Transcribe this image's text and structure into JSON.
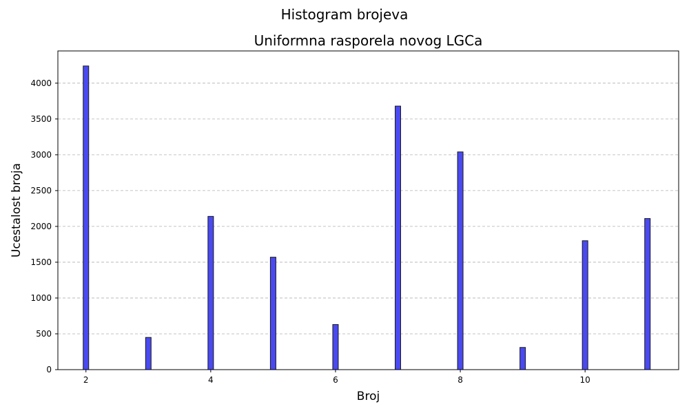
{
  "chart_data": {
    "type": "bar",
    "suptitle": "Histogram brojeva",
    "title": "Uniformna rasporela novog LGCa",
    "xlabel": "Broj",
    "ylabel": "Ucestalost broja",
    "x": [
      2,
      3,
      4,
      5,
      6,
      7,
      8,
      9,
      10,
      11
    ],
    "values": [
      4240,
      450,
      2140,
      1570,
      630,
      3680,
      3040,
      310,
      1800,
      2110
    ],
    "xlim": [
      1.55,
      11.5
    ],
    "ylim": [
      0,
      4450
    ],
    "xticks": [
      2,
      4,
      6,
      8,
      10
    ],
    "xtick_labels": [
      "2",
      "4",
      "6",
      "8",
      "10"
    ],
    "yticks": [
      0,
      500,
      1000,
      1500,
      2000,
      2500,
      3000,
      3500,
      4000
    ],
    "ytick_labels": [
      "0",
      "500",
      "1000",
      "1500",
      "2000",
      "2500",
      "3000",
      "3500",
      "4000"
    ],
    "grid": "y-dashed",
    "bar_color": "#4a4af0",
    "edge_color": "#1a1a1a"
  }
}
